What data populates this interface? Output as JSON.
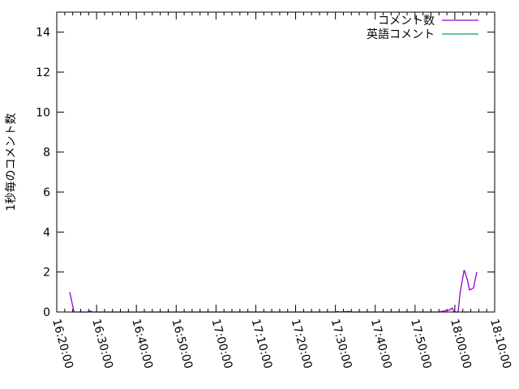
{
  "chart_data": {
    "type": "line",
    "title": "",
    "xlabel": "",
    "ylabel": "1秒毎のコメント数",
    "xlim": [
      "16:20:00",
      "18:10:00"
    ],
    "ylim": [
      0,
      15
    ],
    "xticks": [
      "16:20:00",
      "16:30:00",
      "16:40:00",
      "16:50:00",
      "17:00:00",
      "17:10:00",
      "17:20:00",
      "17:30:00",
      "17:40:00",
      "17:50:00",
      "18:00:00",
      "18:10:00"
    ],
    "yticks": [
      "0",
      "2",
      "4",
      "6",
      "8",
      "10",
      "12",
      "14"
    ],
    "legend_position": "top-right",
    "grid": false,
    "series": [
      {
        "name": "コメント数",
        "color": "#9400d3",
        "points": [
          [
            "16:23:15",
            1.0
          ],
          [
            "16:24:20",
            0
          ],
          [
            "16:28:00",
            0
          ],
          [
            "16:28:20",
            0.05
          ],
          [
            "16:29:00",
            0
          ],
          [
            "17:30:00",
            0
          ],
          [
            "17:30:30",
            0.03
          ],
          [
            "17:31:00",
            0
          ],
          [
            "17:33:30",
            0.03
          ],
          [
            "17:34:00",
            0
          ],
          [
            "17:56:00",
            0
          ],
          [
            "17:57:20",
            0.05
          ],
          [
            "17:58:40",
            0.1
          ],
          [
            "17:59:20",
            0.2
          ],
          [
            "17:59:50",
            0
          ],
          [
            "18:00:50",
            0
          ],
          [
            "18:01:20",
            1.0
          ],
          [
            "18:02:20",
            2.1
          ],
          [
            "18:03:10",
            1.6
          ],
          [
            "18:03:40",
            1.1
          ],
          [
            "18:04:40",
            1.2
          ],
          [
            "18:05:30",
            2.0
          ]
        ]
      },
      {
        "name": "英語コメント",
        "color": "#009e73",
        "points": [
          [
            "18:01:40",
            0
          ],
          [
            "18:03:40",
            0
          ]
        ]
      }
    ]
  }
}
